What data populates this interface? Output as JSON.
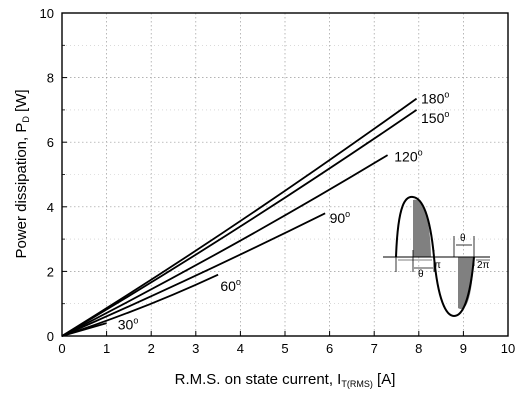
{
  "chart_data": {
    "type": "line",
    "xlabel": "R.M.S. on state current, I",
    "xlabel_sub": "T(RMS)",
    "xlabel_unit": " [A]",
    "ylabel": "Power dissipation, P",
    "ylabel_sub": "D",
    "ylabel_unit": " [W]",
    "xlim": [
      0,
      10
    ],
    "ylim": [
      0,
      10
    ],
    "xticks": [
      0,
      1,
      2,
      3,
      4,
      5,
      6,
      7,
      8,
      9,
      10
    ],
    "yticks": [
      0,
      2,
      4,
      6,
      8,
      10
    ],
    "grid": true,
    "series": [
      {
        "name": "30°",
        "label": "30",
        "x": [
          0,
          1.0
        ],
        "y": [
          0,
          0.4
        ],
        "label_at": [
          1.25,
          0.35
        ]
      },
      {
        "name": "60°",
        "label": "60",
        "x": [
          0,
          2.0,
          3.5
        ],
        "y": [
          0,
          0.98,
          1.9
        ],
        "label_at": [
          3.55,
          1.55
        ]
      },
      {
        "name": "90°",
        "label": "90",
        "x": [
          0,
          3.0,
          5.9
        ],
        "y": [
          0,
          1.85,
          3.8
        ],
        "label_at": [
          6.0,
          3.65
        ]
      },
      {
        "name": "120°",
        "label": "120",
        "x": [
          0,
          4.0,
          7.3
        ],
        "y": [
          0,
          2.85,
          5.6
        ],
        "label_at": [
          7.45,
          5.55
        ]
      },
      {
        "name": "150°",
        "label": "150",
        "x": [
          0,
          4.0,
          7.95
        ],
        "y": [
          0,
          3.25,
          7.0
        ],
        "label_at": [
          8.05,
          6.75
        ]
      },
      {
        "name": "180°",
        "label": "180",
        "x": [
          0,
          4.0,
          7.95
        ],
        "y": [
          0,
          3.4,
          7.35
        ],
        "label_at": [
          8.05,
          7.35
        ]
      }
    ],
    "inset": {
      "labels": [
        "θ",
        "π",
        "θ",
        "2π"
      ]
    }
  }
}
